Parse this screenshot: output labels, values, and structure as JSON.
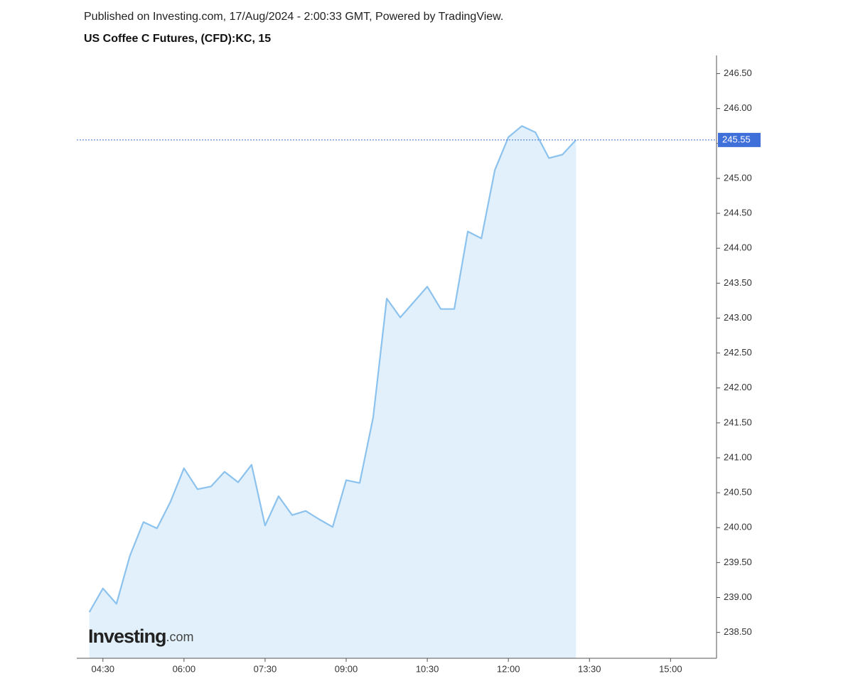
{
  "chart_data": {
    "type": "area",
    "header": "Published on Investing.com, 17/Aug/2024 - 2:00:33 GMT, Powered by TradingView.",
    "title": "US Coffee C Futures, (CFD):KC, 15",
    "logo": {
      "name": "Investing",
      "suffix": ".com"
    },
    "x": [
      "04:15",
      "04:30",
      "04:45",
      "05:00",
      "05:15",
      "05:30",
      "05:45",
      "06:00",
      "06:15",
      "06:30",
      "06:45",
      "07:00",
      "07:15",
      "07:30",
      "07:45",
      "08:00",
      "08:15",
      "08:30",
      "08:45",
      "09:00",
      "09:15",
      "09:30",
      "09:45",
      "10:00",
      "10:15",
      "10:30",
      "10:45",
      "11:00",
      "11:15",
      "11:30",
      "11:45",
      "12:00",
      "12:15",
      "12:30",
      "12:45",
      "13:00",
      "13:15"
    ],
    "series": [
      {
        "name": "KC",
        "color": "#8cc2ee",
        "fill": "#e1f0fa",
        "values": [
          238.79,
          239.13,
          238.91,
          239.6,
          240.08,
          239.99,
          240.37,
          240.85,
          240.55,
          240.59,
          240.8,
          240.65,
          240.9,
          240.03,
          240.45,
          240.18,
          240.24,
          240.12,
          240.01,
          240.68,
          240.64,
          241.58,
          243.28,
          243.01,
          243.23,
          243.45,
          243.13,
          243.13,
          244.24,
          244.14,
          245.12,
          245.59,
          245.75,
          245.66,
          245.29,
          245.34,
          245.55
        ]
      }
    ],
    "xlim": [
      "04:01",
      "15:51"
    ],
    "xticks": [
      "04:30",
      "06:00",
      "07:30",
      "09:00",
      "10:30",
      "12:00",
      "13:30",
      "15:00"
    ],
    "ylim": [
      238.13,
      246.76
    ],
    "yticks": [
      {
        "value": 238.5,
        "label": "238.50"
      },
      {
        "value": 239,
        "label": "239.00"
      },
      {
        "value": 239.5,
        "label": "239.50"
      },
      {
        "value": 240,
        "label": "240.00"
      },
      {
        "value": 240.5,
        "label": "240.50"
      },
      {
        "value": 241,
        "label": "241.00"
      },
      {
        "value": 241.5,
        "label": "241.50"
      },
      {
        "value": 242,
        "label": "242.00"
      },
      {
        "value": 242.5,
        "label": "242.50"
      },
      {
        "value": 243,
        "label": "243.00"
      },
      {
        "value": 243.5,
        "label": "243.50"
      },
      {
        "value": 244,
        "label": "244.00"
      },
      {
        "value": 244.5,
        "label": "244.50"
      },
      {
        "value": 245,
        "label": "245.00"
      },
      {
        "value": 245.5,
        "label": "245.50"
      },
      {
        "value": 246,
        "label": "246.00"
      },
      {
        "value": 246.5,
        "label": "246.50"
      }
    ],
    "last_price_color": "#3f6fd8"
  }
}
